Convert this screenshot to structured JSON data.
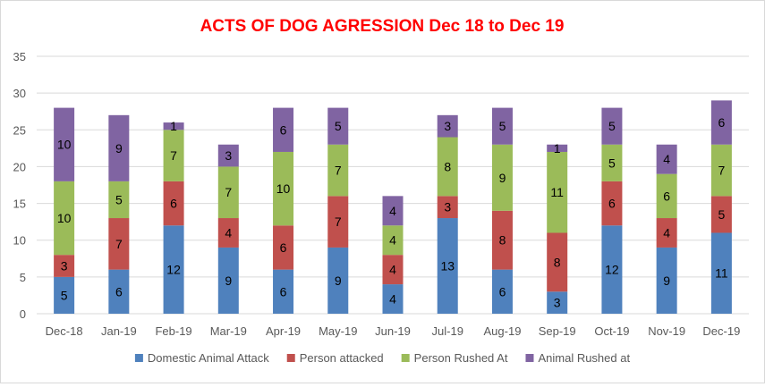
{
  "chart_data": {
    "type": "bar",
    "stacked": true,
    "title": "ACTS OF DOG AGRESSION Dec 18 to Dec 19",
    "title_color": "#ff0000",
    "xlabel": "",
    "ylabel": "",
    "ylim": [
      0,
      35
    ],
    "yticks": [
      0,
      5,
      10,
      15,
      20,
      25,
      30,
      35
    ],
    "grid": true,
    "legend_position": "bottom",
    "categories": [
      "Dec-18",
      "Jan-19",
      "Feb-19",
      "Mar-19",
      "Apr-19",
      "May-19",
      "Jun-19",
      "Jul-19",
      "Aug-19",
      "Sep-19",
      "Oct-19",
      "Nov-19",
      "Dec-19"
    ],
    "series": [
      {
        "name": "Domestic Animal Attack",
        "color": "#4f81bd",
        "values": [
          5,
          6,
          12,
          9,
          6,
          9,
          4,
          13,
          6,
          3,
          12,
          9,
          11
        ]
      },
      {
        "name": "Person attacked",
        "color": "#c0504d",
        "values": [
          3,
          7,
          6,
          4,
          6,
          7,
          4,
          3,
          8,
          8,
          6,
          4,
          5
        ]
      },
      {
        "name": "Person Rushed At",
        "color": "#9bbb59",
        "values": [
          10,
          5,
          7,
          7,
          10,
          7,
          4,
          8,
          9,
          11,
          5,
          6,
          7
        ]
      },
      {
        "name": "Animal Rushed at",
        "color": "#8064a2",
        "values": [
          10,
          9,
          1,
          3,
          6,
          5,
          4,
          3,
          5,
          1,
          5,
          4,
          6
        ]
      }
    ]
  }
}
